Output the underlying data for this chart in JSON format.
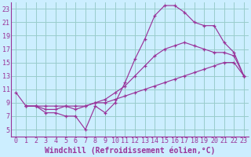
{
  "bg_color": "#cceeff",
  "grid_color": "#99cccc",
  "line_color": "#993399",
  "xlim": [
    -0.5,
    23.5
  ],
  "ylim": [
    4,
    24
  ],
  "xticks": [
    0,
    1,
    2,
    3,
    4,
    5,
    6,
    7,
    8,
    9,
    10,
    11,
    12,
    13,
    14,
    15,
    16,
    17,
    18,
    19,
    20,
    21,
    22,
    23
  ],
  "yticks": [
    5,
    7,
    9,
    11,
    13,
    15,
    17,
    19,
    21,
    23
  ],
  "xlabel": "Windchill (Refroidissement éolien,°C)",
  "line1_x": [
    0,
    1,
    2,
    3,
    4,
    5,
    6,
    7,
    8,
    9,
    10,
    11,
    12,
    13,
    14,
    15,
    16,
    17,
    18,
    19,
    20,
    21,
    22,
    23
  ],
  "line1_y": [
    10.5,
    8.5,
    8.5,
    7.5,
    7.5,
    7.0,
    7.0,
    5.0,
    8.5,
    7.5,
    9.0,
    12.0,
    15.5,
    18.5,
    22.0,
    23.5,
    23.5,
    22.5,
    21.0,
    20.5,
    20.5,
    18.0,
    16.5,
    13.0
  ],
  "line2_x": [
    1,
    2,
    3,
    4,
    5,
    6,
    7,
    8,
    9,
    10,
    11,
    12,
    13,
    14,
    15,
    16,
    17,
    18,
    19,
    20,
    21,
    22,
    23
  ],
  "line2_y": [
    8.5,
    8.5,
    8.0,
    8.0,
    8.5,
    8.0,
    8.5,
    9.0,
    9.5,
    10.5,
    11.5,
    13.0,
    14.5,
    16.0,
    17.0,
    17.5,
    18.0,
    17.5,
    17.0,
    16.5,
    16.5,
    16.0,
    13.0
  ],
  "line3_x": [
    1,
    2,
    3,
    4,
    5,
    6,
    7,
    8,
    9,
    10,
    11,
    12,
    13,
    14,
    15,
    16,
    17,
    18,
    19,
    20,
    21,
    22,
    23
  ],
  "line3_y": [
    8.5,
    8.5,
    8.5,
    8.5,
    8.5,
    8.5,
    8.5,
    9.0,
    9.0,
    9.5,
    10.0,
    10.5,
    11.0,
    11.5,
    12.0,
    12.5,
    13.0,
    13.5,
    14.0,
    14.5,
    15.0,
    15.0,
    13.0
  ],
  "tick_fontsize": 6,
  "axis_fontsize": 7
}
